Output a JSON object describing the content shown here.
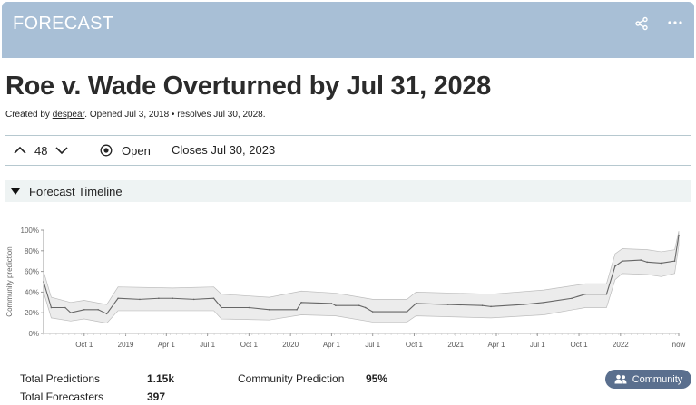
{
  "header": {
    "title": "FORECAST"
  },
  "question": {
    "title": "Roe v. Wade Overturned by Jul 31, 2028",
    "created_prefix": "Created by",
    "author": "despear",
    "created_suffix": ". Opened Jul 3, 2018 • resolves Jul 30, 2028."
  },
  "toolbar": {
    "vote_count": "48",
    "status": "Open",
    "closes": "Closes Jul 30, 2023"
  },
  "timeline": {
    "label": "Forecast Timeline"
  },
  "chart_data": {
    "type": "line",
    "ylabel": "Community prediction",
    "yticks": [
      "0%",
      "20%",
      "40%",
      "60%",
      "80%",
      "100%"
    ],
    "ylim": [
      0,
      100
    ],
    "xticks": [
      "Oct 1",
      "2019",
      "Apr 1",
      "Jul 1",
      "Oct 1",
      "2020",
      "Apr 1",
      "Jul 1",
      "Oct 1",
      "2021",
      "Apr 1",
      "Jul 1",
      "Oct 1",
      "2022",
      "now"
    ],
    "x_range": [
      "2018-07-03",
      "now"
    ],
    "series": [
      {
        "values": [
          [
            "2018-07-03",
            50
          ],
          [
            "2018-07-20",
            25
          ],
          [
            "2018-08-20",
            25
          ],
          [
            "2018-09-01",
            20
          ],
          [
            "2018-10-01",
            23
          ],
          [
            "2018-11-01",
            23
          ],
          [
            "2018-11-20",
            19
          ],
          [
            "2018-12-15",
            34
          ],
          [
            "2019-02-01",
            33
          ],
          [
            "2019-03-15",
            34
          ],
          [
            "2019-04-15",
            34
          ],
          [
            "2019-06-01",
            33
          ],
          [
            "2019-07-15",
            34
          ],
          [
            "2019-08-01",
            25
          ],
          [
            "2019-10-01",
            25
          ],
          [
            "2019-11-15",
            23
          ],
          [
            "2020-01-15",
            23
          ],
          [
            "2020-01-25",
            30
          ],
          [
            "2020-04-01",
            29
          ],
          [
            "2020-04-10",
            27
          ],
          [
            "2020-06-01",
            27
          ],
          [
            "2020-06-15",
            25
          ],
          [
            "2020-07-01",
            21
          ],
          [
            "2020-09-15",
            21
          ],
          [
            "2020-10-05",
            29
          ],
          [
            "2020-12-15",
            28
          ],
          [
            "2021-03-01",
            27
          ],
          [
            "2021-03-20",
            26
          ],
          [
            "2021-06-01",
            28
          ],
          [
            "2021-07-15",
            30
          ],
          [
            "2021-09-15",
            34
          ],
          [
            "2021-10-15",
            38
          ],
          [
            "2021-12-01",
            38
          ],
          [
            "2021-12-20",
            65
          ],
          [
            "2022-01-05",
            70
          ],
          [
            "2022-02-15",
            71
          ],
          [
            "2022-03-01",
            69
          ],
          [
            "2022-04-01",
            68
          ],
          [
            "2022-05-01",
            70
          ],
          [
            "2022-05-10",
            95
          ]
        ],
        "low": [
          [
            "2018-07-03",
            40
          ],
          [
            "2018-07-20",
            15
          ],
          [
            "2018-09-01",
            12
          ],
          [
            "2018-10-01",
            14
          ],
          [
            "2018-11-20",
            10
          ],
          [
            "2018-12-15",
            22
          ],
          [
            "2019-04-15",
            22
          ],
          [
            "2019-07-15",
            22
          ],
          [
            "2019-08-01",
            14
          ],
          [
            "2019-11-15",
            13
          ],
          [
            "2020-01-25",
            18
          ],
          [
            "2020-04-10",
            17
          ],
          [
            "2020-07-01",
            11
          ],
          [
            "2020-09-15",
            11
          ],
          [
            "2020-10-05",
            17
          ],
          [
            "2021-03-20",
            15
          ],
          [
            "2021-07-15",
            18
          ],
          [
            "2021-10-15",
            25
          ],
          [
            "2021-12-01",
            25
          ],
          [
            "2021-12-20",
            52
          ],
          [
            "2022-01-05",
            58
          ],
          [
            "2022-03-01",
            57
          ],
          [
            "2022-04-01",
            55
          ],
          [
            "2022-05-01",
            58
          ],
          [
            "2022-05-10",
            85
          ]
        ],
        "high": [
          [
            "2018-07-03",
            60
          ],
          [
            "2018-07-20",
            35
          ],
          [
            "2018-09-01",
            30
          ],
          [
            "2018-10-01",
            32
          ],
          [
            "2018-11-20",
            28
          ],
          [
            "2018-12-15",
            45
          ],
          [
            "2019-04-15",
            44
          ],
          [
            "2019-07-15",
            45
          ],
          [
            "2019-08-01",
            38
          ],
          [
            "2019-11-15",
            35
          ],
          [
            "2020-01-25",
            41
          ],
          [
            "2020-04-10",
            39
          ],
          [
            "2020-07-01",
            33
          ],
          [
            "2020-09-15",
            33
          ],
          [
            "2020-10-05",
            40
          ],
          [
            "2021-03-20",
            38
          ],
          [
            "2021-07-15",
            42
          ],
          [
            "2021-10-15",
            48
          ],
          [
            "2021-12-01",
            48
          ],
          [
            "2021-12-20",
            77
          ],
          [
            "2022-01-05",
            82
          ],
          [
            "2022-03-01",
            81
          ],
          [
            "2022-04-01",
            79
          ],
          [
            "2022-05-01",
            81
          ],
          [
            "2022-05-10",
            99
          ]
        ]
      }
    ]
  },
  "stats": {
    "total_predictions_label": "Total Predictions",
    "total_predictions_value": "1.15k",
    "total_forecasters_label": "Total Forecasters",
    "total_forecasters_value": "397",
    "community_prediction_label": "Community Prediction",
    "community_prediction_value": "95%"
  },
  "community_button": {
    "label": "Community"
  },
  "colors": {
    "header": "#a8bfd6",
    "timeline_bar": "#eef3f3",
    "button": "#5a6f8e"
  },
  "icons": [
    "share-icon",
    "more-icon",
    "chevron-up-icon",
    "chevron-down-icon",
    "radio-icon",
    "caret-down-icon",
    "users-icon"
  ]
}
